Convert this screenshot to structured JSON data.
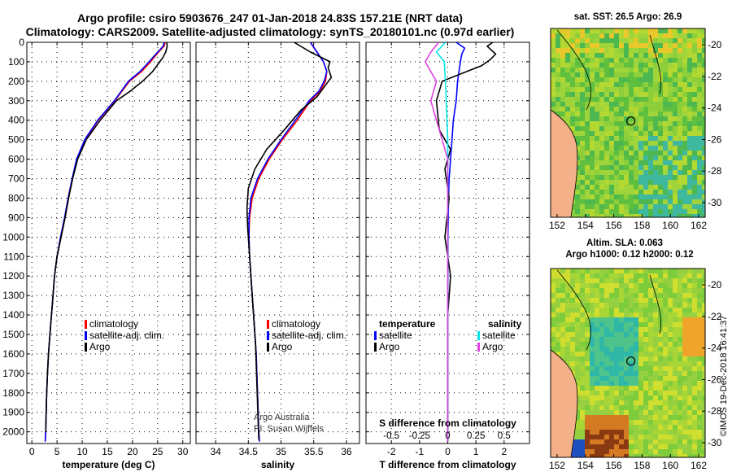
{
  "header": {
    "line1": "Argo profile: csiro 5903676_247 01-Jan-2018 24.83S 157.21E (NRT data)",
    "line2": "Climatology: CARS2009. Satellite-adjusted climatology: synTS_20180101.nc (0.97d earlier)"
  },
  "colors": {
    "climatology": "#ff0000",
    "satellite": "#0000ff",
    "argo": "#000000",
    "salinity_satellite": "#00e5e5",
    "salinity_argo": "#e040e0",
    "land": "#f4b088"
  },
  "depth_axis": {
    "ticks": [
      0,
      100,
      200,
      300,
      400,
      500,
      600,
      700,
      800,
      900,
      1000,
      1100,
      1200,
      1300,
      1400,
      1500,
      1600,
      1700,
      1800,
      1900,
      2000
    ],
    "range": [
      0,
      2060
    ]
  },
  "chart_data": [
    {
      "type": "line",
      "id": "temperature",
      "xlabel": "temperature (deg C)",
      "ylabel": "depth",
      "xlim": [
        -1,
        31.5
      ],
      "xticks": [
        0,
        5,
        10,
        15,
        20,
        25,
        30
      ],
      "legend": [
        "climatology",
        "satellite-adj. clim.",
        "Argo"
      ],
      "series": [
        {
          "name": "climatology",
          "color": "#ff0000",
          "x": [
            26.5,
            26.3,
            25.2,
            23.6,
            21.8,
            19.4,
            16.5,
            13.2,
            10.6,
            9.0,
            8.1,
            7.3,
            6.6,
            5.8,
            5.0,
            4.5,
            4.2,
            3.9,
            3.6,
            3.3,
            3.1,
            2.95,
            2.85,
            2.75,
            2.65
          ],
          "depth": [
            0,
            20,
            50,
            100,
            150,
            200,
            300,
            400,
            500,
            600,
            700,
            800,
            900,
            1000,
            1100,
            1200,
            1300,
            1400,
            1500,
            1600,
            1700,
            1800,
            1900,
            2000,
            2050
          ]
        },
        {
          "name": "satellite-adj. clim.",
          "color": "#0000ff",
          "x": [
            26.3,
            26.1,
            25.0,
            23.3,
            21.5,
            19.2,
            16.4,
            13.1,
            10.5,
            8.9,
            8.0,
            7.2,
            6.5,
            5.7,
            5.0,
            4.5,
            4.2,
            3.9,
            3.6,
            3.3,
            3.1,
            2.95,
            2.85,
            2.75,
            2.65
          ],
          "depth": [
            0,
            20,
            50,
            100,
            150,
            200,
            300,
            400,
            500,
            600,
            700,
            800,
            900,
            1000,
            1100,
            1200,
            1300,
            1400,
            1500,
            1600,
            1700,
            1800,
            1900,
            2000,
            2050
          ]
        },
        {
          "name": "Argo",
          "color": "#000000",
          "x": [
            26.8,
            26.9,
            26.6,
            26.0,
            24.0,
            22.0,
            19.6,
            16.8,
            13.6,
            10.8,
            9.1,
            8.1,
            7.3,
            6.6,
            5.8,
            5.0,
            4.5,
            4.2,
            3.9,
            3.6,
            3.3,
            3.1,
            2.95,
            2.85,
            2.75
          ],
          "depth": [
            0,
            20,
            50,
            80,
            150,
            200,
            250,
            300,
            400,
            500,
            600,
            700,
            800,
            900,
            1000,
            1100,
            1200,
            1300,
            1400,
            1500,
            1600,
            1700,
            1800,
            1900,
            2000
          ]
        }
      ]
    },
    {
      "type": "line",
      "id": "salinity",
      "xlabel": "salinity",
      "ylabel": "depth",
      "xlim": [
        33.7,
        36.2
      ],
      "xticks": [
        34,
        34.5,
        35,
        35.5,
        36
      ],
      "legend": [
        "climatology",
        "satellite-adj. clim.",
        "Argo"
      ],
      "annotation": [
        "Argo Australia",
        "PI: Susan Wijffels"
      ],
      "series": [
        {
          "name": "climatology",
          "color": "#ff0000",
          "x": [
            35.45,
            35.55,
            35.65,
            35.7,
            35.68,
            35.6,
            35.45,
            35.25,
            35.02,
            34.82,
            34.66,
            34.56,
            34.52,
            34.51,
            34.52,
            34.54,
            34.56,
            34.58,
            34.6,
            34.62,
            34.63,
            34.64,
            34.65,
            34.66,
            34.67
          ],
          "depth": [
            0,
            50,
            100,
            150,
            200,
            250,
            300,
            400,
            500,
            600,
            700,
            800,
            900,
            1000,
            1100,
            1200,
            1300,
            1400,
            1500,
            1600,
            1700,
            1800,
            1900,
            2000,
            2050
          ]
        },
        {
          "name": "satellite-adj. clim.",
          "color": "#0000ff",
          "x": [
            35.45,
            35.55,
            35.65,
            35.7,
            35.66,
            35.58,
            35.43,
            35.22,
            35.0,
            34.8,
            34.64,
            34.54,
            34.51,
            34.51,
            34.52,
            34.54,
            34.56,
            34.58,
            34.6,
            34.62,
            34.63,
            34.64,
            34.65,
            34.66,
            34.67
          ],
          "depth": [
            0,
            50,
            100,
            150,
            200,
            250,
            300,
            400,
            500,
            600,
            700,
            800,
            900,
            1000,
            1100,
            1200,
            1300,
            1400,
            1500,
            1600,
            1700,
            1800,
            1900,
            2000,
            2050
          ]
        },
        {
          "name": "Argo",
          "color": "#000000",
          "x": [
            35.2,
            35.45,
            35.75,
            35.72,
            35.77,
            35.68,
            35.55,
            35.3,
            35.05,
            34.78,
            34.6,
            34.5,
            34.48,
            34.49,
            34.51,
            34.53,
            34.55,
            34.57,
            34.59,
            34.61,
            34.62,
            34.63,
            34.64,
            34.65,
            34.66
          ],
          "depth": [
            0,
            50,
            100,
            130,
            180,
            220,
            280,
            350,
            450,
            550,
            650,
            750,
            850,
            950,
            1050,
            1150,
            1250,
            1350,
            1450,
            1550,
            1650,
            1750,
            1850,
            1950,
            2040
          ]
        }
      ]
    },
    {
      "type": "line",
      "id": "difference",
      "xlabel": "T difference from climatology",
      "xlabel_top": "S difference from climatology",
      "xlim": [
        -2.9,
        2.9
      ],
      "xticks": [
        -2,
        -1,
        0,
        1,
        2
      ],
      "sticks": [
        -0.5,
        -0.25,
        0,
        0.25,
        0.5
      ],
      "sticks_labels": [
        "-0.5",
        "-0.25",
        "0",
        "0.25",
        "0.5"
      ],
      "legend_temperature_title": "temperature",
      "legend_temperature": [
        "satellite",
        "Argo"
      ],
      "legend_salinity_title": "salinity",
      "legend_salinity": [
        "satellite",
        "Argo"
      ],
      "series": [
        {
          "name": "T satellite",
          "color": "#0000ff",
          "x": [
            0.3,
            0.6,
            0.5,
            0.45,
            0.35,
            0.3,
            0.2,
            0.15,
            0.1,
            0.05,
            0.03,
            0.02,
            0.01,
            0.01,
            0,
            0,
            0,
            0,
            0,
            0
          ],
          "depth": [
            0,
            30,
            60,
            100,
            200,
            300,
            400,
            500,
            600,
            700,
            800,
            900,
            1000,
            1200,
            1400,
            1600,
            1800,
            1900,
            2000,
            2050
          ]
        },
        {
          "name": "T Argo",
          "color": "#000000",
          "x": [
            1.6,
            1.4,
            1.7,
            1.5,
            1.2,
            0.5,
            -0.2,
            -0.4,
            -0.3,
            0.1,
            -0.1,
            0.05,
            -0.1,
            0.1,
            0,
            0,
            0,
            0,
            0,
            0
          ],
          "depth": [
            0,
            20,
            60,
            90,
            120,
            160,
            200,
            300,
            450,
            550,
            650,
            800,
            1000,
            1200,
            1400,
            1600,
            1800,
            1900,
            2000,
            2050
          ]
        },
        {
          "name": "S satellite",
          "color": "#00e5e5",
          "x": [
            -0.02,
            -0.1,
            -0.03,
            -0.02,
            0,
            0,
            0,
            0,
            0
          ],
          "depth": [
            0,
            50,
            100,
            200,
            500,
            1000,
            1500,
            2000,
            2050
          ]
        },
        {
          "name": "S Argo",
          "color": "#e040e0",
          "x": [
            -0.08,
            -0.15,
            -0.2,
            -0.1,
            -0.15,
            -0.1,
            -0.05,
            0,
            0,
            0
          ],
          "depth": [
            0,
            50,
            100,
            200,
            300,
            400,
            500,
            600,
            1000,
            2050
          ]
        }
      ]
    },
    {
      "type": "heatmap",
      "id": "sst_map",
      "title": "sat. SST: 26.5 Argo: 26.9",
      "xticks": [
        "152",
        "154",
        "156",
        "158",
        "160",
        "162"
      ],
      "yticks": [
        "-20",
        "-22",
        "-24",
        "-26",
        "-28",
        "-30"
      ],
      "float_lon": 157.21,
      "float_lat": -24.83
    },
    {
      "type": "heatmap",
      "id": "sla_map",
      "title_line1": "Altim. SLA: 0.063",
      "title_line2": "Argo h1000: 0.12 h2000: 0.12",
      "xticks": [
        "152",
        "154",
        "156",
        "158",
        "160",
        "162"
      ],
      "yticks": [
        "-20",
        "-22",
        "-24",
        "-26",
        "-28",
        "-30"
      ],
      "float_lon": 157.21,
      "float_lat": -24.83
    }
  ],
  "footer": {
    "stamp": "©IMOS 19-Dec-2018 16:41:37"
  }
}
